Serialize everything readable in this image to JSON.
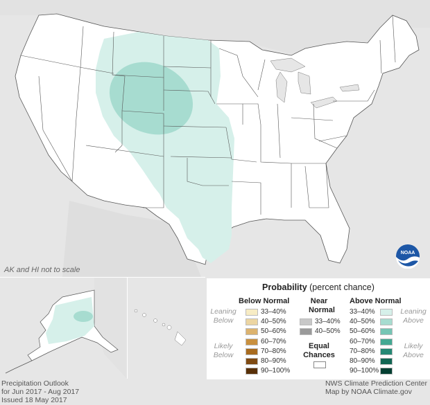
{
  "map": {
    "scale_note": "AK and HI not to scale",
    "colors": {
      "background": "#e6e6e6",
      "land": "#ffffff",
      "borders": "#555555",
      "above_33_40": "#d6f0ea",
      "above_40_50": "#a7dcd0"
    }
  },
  "legend": {
    "title_bold": "Probability",
    "title_rest": "(percent chance)",
    "below": {
      "heading": "Below Normal",
      "side_top": "Leaning\nBelow",
      "side_bottom": "Likely\nBelow",
      "items": [
        {
          "label": "33–40%",
          "color": "#f7ecc4"
        },
        {
          "label": "40–50%",
          "color": "#ecd5a2"
        },
        {
          "label": "50–60%",
          "color": "#dcb36f"
        },
        {
          "label": "60–70%",
          "color": "#c9903f"
        },
        {
          "label": "70–80%",
          "color": "#a86b1f"
        },
        {
          "label": "80–90%",
          "color": "#7f4a12"
        },
        {
          "label": "90–100%",
          "color": "#583008"
        }
      ]
    },
    "near": {
      "heading1": "Near",
      "heading2": "Normal",
      "items": [
        {
          "label": "33–40%",
          "color": "#c8c8c8"
        },
        {
          "label": "40–50%",
          "color": "#9a9a9a"
        }
      ]
    },
    "equal": {
      "line1": "Equal",
      "line2": "Chances",
      "color": "#ffffff"
    },
    "above": {
      "heading": "Above Normal",
      "side_top": "Leaning\nAbove",
      "side_bottom": "Likely\nAbove",
      "items": [
        {
          "label": "33–40%",
          "color": "#d6f0ea"
        },
        {
          "label": "40–50%",
          "color": "#a7dcd0"
        },
        {
          "label": "50–60%",
          "color": "#76c5b4"
        },
        {
          "label": "60–70%",
          "color": "#44a892"
        },
        {
          "label": "70–80%",
          "color": "#248874"
        },
        {
          "label": "80–90%",
          "color": "#116653"
        },
        {
          "label": "90–100%",
          "color": "#043f32"
        }
      ]
    }
  },
  "footer": {
    "left": [
      "Precipitation Outlook",
      "for Jun 2017 - Aug 2017",
      "Issued 18 May 2017"
    ],
    "right": [
      "NWS Climate Prediction Center",
      "Map by NOAA Climate.gov"
    ]
  },
  "logo": {
    "text": "NOAA"
  }
}
